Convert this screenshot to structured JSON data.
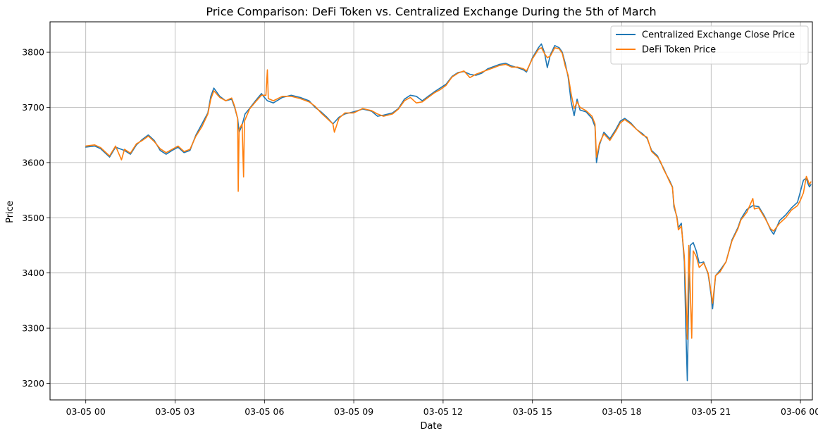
{
  "chart_data": {
    "type": "line",
    "title": "Price Comparison: DeFi Token vs. Centralized Exchange During the 5th of March",
    "xlabel": "Date",
    "ylabel": "Price",
    "x_ticks": [
      {
        "hour": 0,
        "label": "03-05 00"
      },
      {
        "hour": 3,
        "label": "03-05 03"
      },
      {
        "hour": 6,
        "label": "03-05 06"
      },
      {
        "hour": 9,
        "label": "03-05 09"
      },
      {
        "hour": 12,
        "label": "03-05 12"
      },
      {
        "hour": 15,
        "label": "03-05 15"
      },
      {
        "hour": 18,
        "label": "03-05 18"
      },
      {
        "hour": 21,
        "label": "03-05 21"
      },
      {
        "hour": 24,
        "label": "03-06 00"
      }
    ],
    "y_ticks": [
      3200,
      3300,
      3400,
      3500,
      3600,
      3700,
      3800
    ],
    "xlim": [
      -1.2,
      24.4
    ],
    "ylim": [
      3170,
      3855
    ],
    "grid": true,
    "legend_position": "top-right",
    "series": [
      {
        "name": "Centralized Exchange Close Price",
        "color": "#1f77b4",
        "points": [
          [
            0.0,
            3628
          ],
          [
            0.3,
            3630
          ],
          [
            0.5,
            3625
          ],
          [
            0.8,
            3610
          ],
          [
            1.0,
            3628
          ],
          [
            1.3,
            3622
          ],
          [
            1.5,
            3615
          ],
          [
            1.7,
            3632
          ],
          [
            1.9,
            3642
          ],
          [
            2.1,
            3650
          ],
          [
            2.3,
            3640
          ],
          [
            2.5,
            3622
          ],
          [
            2.7,
            3615
          ],
          [
            2.9,
            3622
          ],
          [
            3.1,
            3628
          ],
          [
            3.3,
            3618
          ],
          [
            3.5,
            3622
          ],
          [
            3.7,
            3650
          ],
          [
            3.9,
            3670
          ],
          [
            4.1,
            3690
          ],
          [
            4.2,
            3720
          ],
          [
            4.3,
            3735
          ],
          [
            4.5,
            3720
          ],
          [
            4.7,
            3712
          ],
          [
            4.9,
            3715
          ],
          [
            5.0,
            3700
          ],
          [
            5.1,
            3680
          ],
          [
            5.15,
            3655
          ],
          [
            5.25,
            3668
          ],
          [
            5.35,
            3688
          ],
          [
            5.5,
            3698
          ],
          [
            5.7,
            3712
          ],
          [
            5.9,
            3725
          ],
          [
            6.0,
            3718
          ],
          [
            6.1,
            3712
          ],
          [
            6.3,
            3708
          ],
          [
            6.6,
            3718
          ],
          [
            6.9,
            3722
          ],
          [
            7.2,
            3718
          ],
          [
            7.5,
            3712
          ],
          [
            7.7,
            3700
          ],
          [
            7.9,
            3692
          ],
          [
            8.1,
            3682
          ],
          [
            8.3,
            3670
          ],
          [
            8.5,
            3682
          ],
          [
            8.7,
            3688
          ],
          [
            9.0,
            3692
          ],
          [
            9.3,
            3697
          ],
          [
            9.6,
            3693
          ],
          [
            9.8,
            3684
          ],
          [
            10.0,
            3686
          ],
          [
            10.3,
            3690
          ],
          [
            10.5,
            3698
          ],
          [
            10.7,
            3715
          ],
          [
            10.9,
            3722
          ],
          [
            11.1,
            3720
          ],
          [
            11.3,
            3712
          ],
          [
            11.5,
            3720
          ],
          [
            11.7,
            3728
          ],
          [
            11.9,
            3735
          ],
          [
            12.1,
            3742
          ],
          [
            12.3,
            3756
          ],
          [
            12.5,
            3763
          ],
          [
            12.7,
            3765
          ],
          [
            12.9,
            3760
          ],
          [
            13.1,
            3758
          ],
          [
            13.3,
            3762
          ],
          [
            13.5,
            3770
          ],
          [
            13.7,
            3774
          ],
          [
            13.9,
            3778
          ],
          [
            14.1,
            3780
          ],
          [
            14.3,
            3775
          ],
          [
            14.5,
            3772
          ],
          [
            14.7,
            3768
          ],
          [
            14.8,
            3764
          ],
          [
            15.0,
            3790
          ],
          [
            15.2,
            3808
          ],
          [
            15.3,
            3815
          ],
          [
            15.4,
            3800
          ],
          [
            15.5,
            3772
          ],
          [
            15.6,
            3795
          ],
          [
            15.75,
            3812
          ],
          [
            15.9,
            3808
          ],
          [
            16.0,
            3800
          ],
          [
            16.1,
            3780
          ],
          [
            16.2,
            3755
          ],
          [
            16.3,
            3710
          ],
          [
            16.4,
            3685
          ],
          [
            16.5,
            3715
          ],
          [
            16.6,
            3695
          ],
          [
            16.8,
            3692
          ],
          [
            17.0,
            3680
          ],
          [
            17.1,
            3665
          ],
          [
            17.15,
            3600
          ],
          [
            17.25,
            3632
          ],
          [
            17.4,
            3655
          ],
          [
            17.6,
            3643
          ],
          [
            17.8,
            3660
          ],
          [
            17.95,
            3675
          ],
          [
            18.1,
            3680
          ],
          [
            18.3,
            3672
          ],
          [
            18.5,
            3660
          ],
          [
            18.7,
            3652
          ],
          [
            18.85,
            3644
          ],
          [
            19.0,
            3622
          ],
          [
            19.2,
            3612
          ],
          [
            19.3,
            3600
          ],
          [
            19.4,
            3590
          ],
          [
            19.5,
            3578
          ],
          [
            19.6,
            3568
          ],
          [
            19.7,
            3556
          ],
          [
            19.75,
            3520
          ],
          [
            19.85,
            3502
          ],
          [
            19.9,
            3482
          ],
          [
            20.0,
            3490
          ],
          [
            20.1,
            3420
          ],
          [
            20.15,
            3300
          ],
          [
            20.2,
            3205
          ],
          [
            20.25,
            3360
          ],
          [
            20.3,
            3450
          ],
          [
            20.4,
            3455
          ],
          [
            20.5,
            3440
          ],
          [
            20.6,
            3418
          ],
          [
            20.75,
            3420
          ],
          [
            20.9,
            3398
          ],
          [
            21.0,
            3360
          ],
          [
            21.05,
            3335
          ],
          [
            21.15,
            3395
          ],
          [
            21.3,
            3405
          ],
          [
            21.5,
            3420
          ],
          [
            21.7,
            3460
          ],
          [
            21.9,
            3482
          ],
          [
            22.0,
            3498
          ],
          [
            22.2,
            3515
          ],
          [
            22.4,
            3522
          ],
          [
            22.6,
            3520
          ],
          [
            22.8,
            3502
          ],
          [
            23.0,
            3478
          ],
          [
            23.1,
            3470
          ],
          [
            23.3,
            3495
          ],
          [
            23.5,
            3505
          ],
          [
            23.7,
            3518
          ],
          [
            23.9,
            3528
          ],
          [
            24.0,
            3548
          ],
          [
            24.1,
            3568
          ],
          [
            24.2,
            3572
          ],
          [
            24.25,
            3562
          ],
          [
            24.3,
            3556
          ],
          [
            24.35,
            3560
          ]
        ]
      },
      {
        "name": "DeFi Token Price",
        "color": "#ff7f0e",
        "points": [
          [
            0.0,
            3630
          ],
          [
            0.3,
            3632
          ],
          [
            0.5,
            3627
          ],
          [
            0.8,
            3612
          ],
          [
            1.0,
            3630
          ],
          [
            1.2,
            3605
          ],
          [
            1.3,
            3624
          ],
          [
            1.5,
            3617
          ],
          [
            1.7,
            3634
          ],
          [
            1.9,
            3640
          ],
          [
            2.1,
            3648
          ],
          [
            2.3,
            3638
          ],
          [
            2.5,
            3625
          ],
          [
            2.7,
            3618
          ],
          [
            2.9,
            3624
          ],
          [
            3.1,
            3630
          ],
          [
            3.3,
            3620
          ],
          [
            3.5,
            3624
          ],
          [
            3.7,
            3648
          ],
          [
            3.9,
            3665
          ],
          [
            4.1,
            3688
          ],
          [
            4.2,
            3715
          ],
          [
            4.3,
            3730
          ],
          [
            4.5,
            3718
          ],
          [
            4.7,
            3712
          ],
          [
            4.9,
            3717
          ],
          [
            5.0,
            3702
          ],
          [
            5.1,
            3680
          ],
          [
            5.12,
            3548
          ],
          [
            5.15,
            3660
          ],
          [
            5.25,
            3670
          ],
          [
            5.3,
            3574
          ],
          [
            5.33,
            3675
          ],
          [
            5.5,
            3697
          ],
          [
            5.7,
            3710
          ],
          [
            5.9,
            3722
          ],
          [
            6.05,
            3722
          ],
          [
            6.1,
            3768
          ],
          [
            6.13,
            3716
          ],
          [
            6.3,
            3712
          ],
          [
            6.6,
            3720
          ],
          [
            6.9,
            3720
          ],
          [
            7.2,
            3716
          ],
          [
            7.5,
            3710
          ],
          [
            7.7,
            3702
          ],
          [
            7.9,
            3690
          ],
          [
            8.1,
            3680
          ],
          [
            8.3,
            3670
          ],
          [
            8.35,
            3655
          ],
          [
            8.5,
            3680
          ],
          [
            8.7,
            3690
          ],
          [
            9.0,
            3690
          ],
          [
            9.3,
            3698
          ],
          [
            9.6,
            3694
          ],
          [
            9.8,
            3688
          ],
          [
            10.0,
            3684
          ],
          [
            10.3,
            3688
          ],
          [
            10.5,
            3697
          ],
          [
            10.7,
            3712
          ],
          [
            10.9,
            3718
          ],
          [
            11.1,
            3708
          ],
          [
            11.3,
            3710
          ],
          [
            11.5,
            3718
          ],
          [
            11.7,
            3726
          ],
          [
            11.9,
            3732
          ],
          [
            12.1,
            3740
          ],
          [
            12.3,
            3755
          ],
          [
            12.5,
            3762
          ],
          [
            12.7,
            3766
          ],
          [
            12.9,
            3754
          ],
          [
            13.1,
            3760
          ],
          [
            13.3,
            3764
          ],
          [
            13.5,
            3768
          ],
          [
            13.7,
            3772
          ],
          [
            13.9,
            3776
          ],
          [
            14.1,
            3778
          ],
          [
            14.3,
            3773
          ],
          [
            14.5,
            3773
          ],
          [
            14.7,
            3770
          ],
          [
            14.8,
            3766
          ],
          [
            15.0,
            3788
          ],
          [
            15.2,
            3805
          ],
          [
            15.3,
            3808
          ],
          [
            15.4,
            3798
          ],
          [
            15.5,
            3790
          ],
          [
            15.6,
            3793
          ],
          [
            15.75,
            3808
          ],
          [
            15.9,
            3806
          ],
          [
            16.0,
            3798
          ],
          [
            16.1,
            3775
          ],
          [
            16.2,
            3758
          ],
          [
            16.3,
            3725
          ],
          [
            16.4,
            3698
          ],
          [
            16.5,
            3710
          ],
          [
            16.6,
            3700
          ],
          [
            16.8,
            3694
          ],
          [
            17.0,
            3684
          ],
          [
            17.1,
            3670
          ],
          [
            17.15,
            3610
          ],
          [
            17.25,
            3635
          ],
          [
            17.4,
            3652
          ],
          [
            17.6,
            3640
          ],
          [
            17.8,
            3657
          ],
          [
            17.95,
            3672
          ],
          [
            18.1,
            3678
          ],
          [
            18.3,
            3670
          ],
          [
            18.5,
            3660
          ],
          [
            18.7,
            3650
          ],
          [
            18.85,
            3646
          ],
          [
            19.0,
            3620
          ],
          [
            19.2,
            3610
          ],
          [
            19.3,
            3602
          ],
          [
            19.4,
            3588
          ],
          [
            19.5,
            3578
          ],
          [
            19.6,
            3566
          ],
          [
            19.7,
            3555
          ],
          [
            19.75,
            3525
          ],
          [
            19.85,
            3500
          ],
          [
            19.9,
            3478
          ],
          [
            20.0,
            3485
          ],
          [
            20.1,
            3430
          ],
          [
            20.15,
            3360
          ],
          [
            20.2,
            3280
          ],
          [
            20.25,
            3450
          ],
          [
            20.35,
            3282
          ],
          [
            20.4,
            3440
          ],
          [
            20.5,
            3430
          ],
          [
            20.6,
            3410
          ],
          [
            20.75,
            3418
          ],
          [
            20.9,
            3400
          ],
          [
            21.0,
            3365
          ],
          [
            21.05,
            3345
          ],
          [
            21.15,
            3395
          ],
          [
            21.3,
            3402
          ],
          [
            21.5,
            3420
          ],
          [
            21.7,
            3458
          ],
          [
            21.9,
            3480
          ],
          [
            22.0,
            3496
          ],
          [
            22.2,
            3510
          ],
          [
            22.4,
            3535
          ],
          [
            22.45,
            3516
          ],
          [
            22.6,
            3518
          ],
          [
            22.8,
            3500
          ],
          [
            23.0,
            3480
          ],
          [
            23.1,
            3476
          ],
          [
            23.3,
            3490
          ],
          [
            23.5,
            3500
          ],
          [
            23.7,
            3514
          ],
          [
            23.9,
            3522
          ],
          [
            24.0,
            3532
          ],
          [
            24.1,
            3545
          ],
          [
            24.2,
            3575
          ],
          [
            24.25,
            3568
          ],
          [
            24.3,
            3560
          ],
          [
            24.35,
            3565
          ]
        ]
      }
    ]
  }
}
